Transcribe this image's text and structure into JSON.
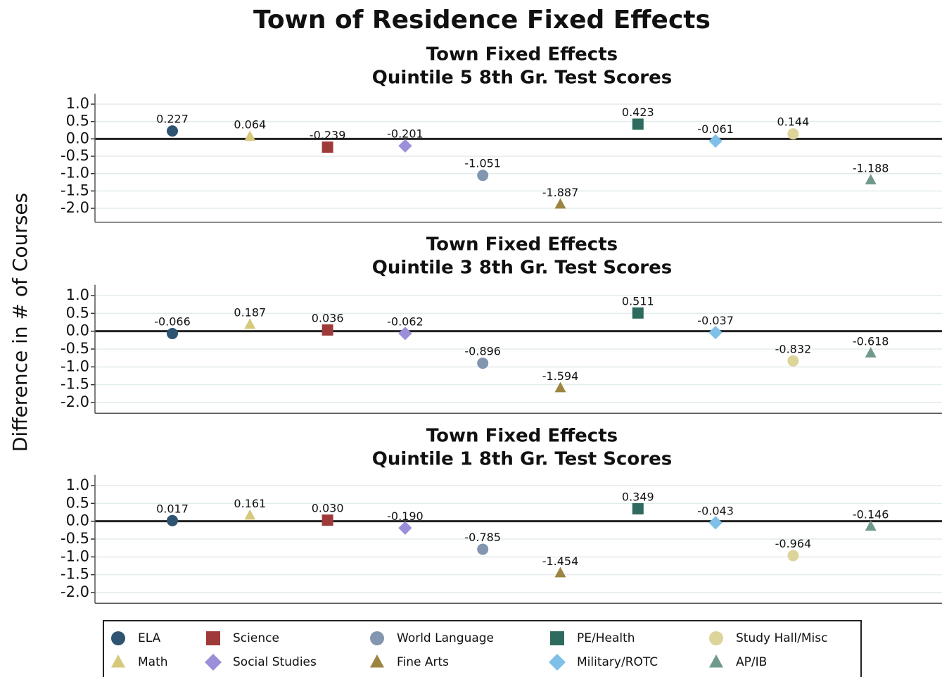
{
  "title": "Town of Residence Fixed Effects",
  "y_label": "Difference in # of Courses",
  "series": [
    {
      "name": "ELA",
      "color": "#2e5472",
      "marker": "circle"
    },
    {
      "name": "Math",
      "color": "#d6c97c",
      "marker": "triangle"
    },
    {
      "name": "Science",
      "color": "#9e3a3a",
      "marker": "square"
    },
    {
      "name": "Social Studies",
      "color": "#9a8fd8",
      "marker": "diamond"
    },
    {
      "name": "World Language",
      "color": "#8396b0",
      "marker": "circle"
    },
    {
      "name": "Fine Arts",
      "color": "#9c8541",
      "marker": "triangle"
    },
    {
      "name": "PE/Health",
      "color": "#2e6b5e",
      "marker": "square"
    },
    {
      "name": "Military/ROTC",
      "color": "#7ec0e8",
      "marker": "diamond"
    },
    {
      "name": "Study Hall/Misc",
      "color": "#ddd49a",
      "marker": "circle"
    },
    {
      "name": "AP/IB",
      "color": "#6f9a8a",
      "marker": "triangle"
    }
  ],
  "chart_data": [
    {
      "type": "scatter",
      "title": "Town Fixed Effects",
      "subtitle": "Quintile 5 8th Gr. Test Scores",
      "values": [
        0.227,
        0.064,
        -0.239,
        -0.201,
        -1.051,
        -1.887,
        0.423,
        -0.061,
        0.144,
        -1.188
      ],
      "value_labels": [
        "0.227",
        "0.064",
        "-0.239",
        "-0.201",
        "-1.051",
        "-1.887",
        "0.423",
        "-0.061",
        "0.144",
        "-1.188"
      ],
      "ylim": [
        -2.4,
        1.3
      ],
      "yticks": [
        {
          "value": 1,
          "label": "1.0"
        },
        {
          "value": 0.5,
          "label": "0.5"
        },
        {
          "value": 0,
          "label": "0.0"
        },
        {
          "value": -0.5,
          "label": "-0.5"
        },
        {
          "value": -1,
          "label": "-1.0"
        },
        {
          "value": -1.5,
          "label": "-1.5"
        },
        {
          "value": -2,
          "label": "-2.0"
        }
      ]
    },
    {
      "type": "scatter",
      "title": "Town Fixed Effects",
      "subtitle": "Quintile 3 8th Gr. Test Scores",
      "values": [
        -0.066,
        0.187,
        0.036,
        -0.062,
        -0.896,
        -1.594,
        0.511,
        -0.037,
        -0.832,
        -0.618
      ],
      "value_labels": [
        "-0.066",
        "0.187",
        "0.036",
        "-0.062",
        "-0.896",
        "-1.594",
        "0.511",
        "-0.037",
        "-0.832",
        "-0.618"
      ],
      "ylim": [
        -2.3,
        1.3
      ],
      "yticks": [
        {
          "value": 1,
          "label": "1.0"
        },
        {
          "value": 0.5,
          "label": "0.5"
        },
        {
          "value": 0,
          "label": "0.0"
        },
        {
          "value": -0.5,
          "label": "-0.5"
        },
        {
          "value": -1,
          "label": "-1.0"
        },
        {
          "value": -1.5,
          "label": "-1.5"
        },
        {
          "value": -2,
          "label": "-2.0"
        }
      ]
    },
    {
      "type": "scatter",
      "title": "Town Fixed Effects",
      "subtitle": "Quintile 1 8th Gr. Test Scores",
      "values": [
        0.017,
        0.161,
        0.03,
        -0.19,
        -0.785,
        -1.454,
        0.349,
        -0.043,
        -0.964,
        -0.146
      ],
      "value_labels": [
        "0.017",
        "0.161",
        "0.030",
        "-0.190",
        "-0.785",
        "-1.454",
        "0.349",
        "-0.043",
        "-0.964",
        "-0.146"
      ],
      "ylim": [
        -2.3,
        1.3
      ],
      "yticks": [
        {
          "value": 1,
          "label": "1.0"
        },
        {
          "value": 0.5,
          "label": "0.5"
        },
        {
          "value": 0,
          "label": "0.0"
        },
        {
          "value": -0.5,
          "label": "-0.5"
        },
        {
          "value": -1,
          "label": "-1.0"
        },
        {
          "value": -1.5,
          "label": "-1.5"
        },
        {
          "value": -2,
          "label": "-2.0"
        }
      ]
    }
  ]
}
